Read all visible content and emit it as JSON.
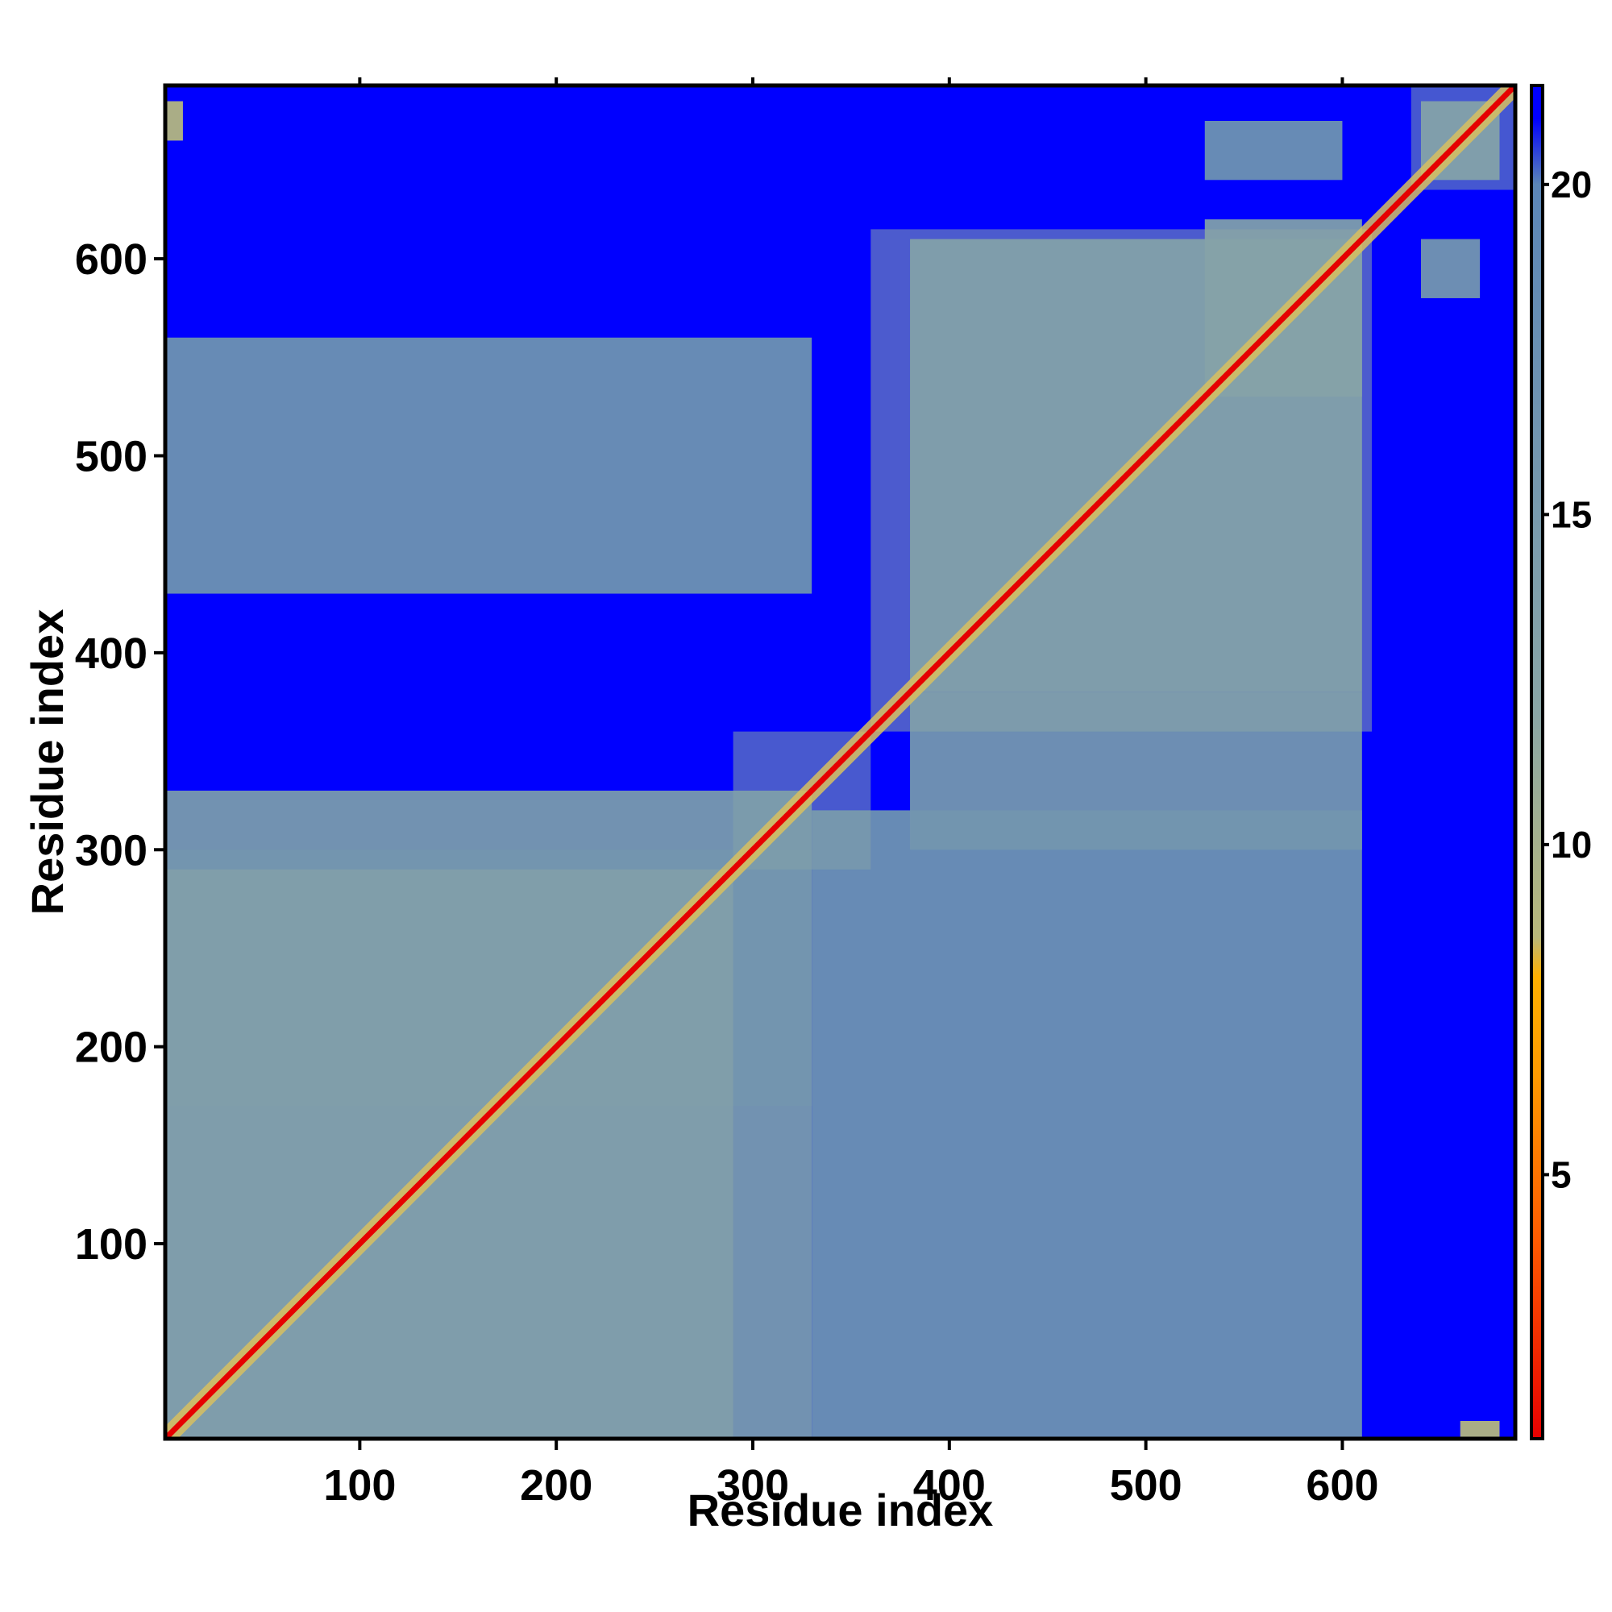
{
  "chart_data": {
    "type": "heatmap",
    "title": "",
    "xlabel": "Residue index",
    "ylabel": "Residue index",
    "n_residues": 688,
    "xlim": [
      1,
      688
    ],
    "ylim": [
      1,
      688
    ],
    "x_ticks": [
      100,
      200,
      300,
      400,
      500,
      600
    ],
    "y_ticks": [
      100,
      200,
      300,
      400,
      500,
      600
    ],
    "colorbar": {
      "ticks": [
        5,
        10,
        15,
        20
      ],
      "range": [
        1,
        21.5
      ],
      "colors": [
        {
          "value": 1,
          "color": "#e60000"
        },
        {
          "value": 4,
          "color": "#ff5a00"
        },
        {
          "value": 6.5,
          "color": "#ff9a00"
        },
        {
          "value": 8,
          "color": "#ffb000"
        },
        {
          "value": 8.6,
          "color": "#b8b87a"
        },
        {
          "value": 12,
          "color": "#8aa6a6"
        },
        {
          "value": 20,
          "color": "#5b86b8"
        },
        {
          "value": 21,
          "color": "#0000ff"
        }
      ]
    },
    "background_color": "#0000ff",
    "contact_color": "#5b86b8",
    "close_color": "#d8c060",
    "diagonal_color": "#e60000",
    "domains": [
      {
        "start": 1,
        "end": 290,
        "value": 12
      },
      {
        "start": 290,
        "end": 360,
        "value": 13
      },
      {
        "start": 360,
        "end": 615,
        "value": 12
      },
      {
        "start": 635,
        "end": 688,
        "value": 14
      }
    ],
    "off_diagonal_contacts": [
      {
        "x": [
          1,
          330
        ],
        "y": [
          1,
          330
        ],
        "value": 15
      },
      {
        "x": [
          380,
          610
        ],
        "y": [
          380,
          610
        ],
        "value": 15
      },
      {
        "x": [
          1,
          330
        ],
        "y": [
          430,
          560
        ],
        "value": 17
      },
      {
        "x": [
          1,
          330
        ],
        "y": [
          170,
          300
        ],
        "value": 16
      },
      {
        "x": [
          330,
          610
        ],
        "y": [
          1,
          320
        ],
        "value": 17
      },
      {
        "x": [
          380,
          610
        ],
        "y": [
          300,
          380
        ],
        "value": 16
      },
      {
        "x": [
          530,
          610
        ],
        "y": [
          530,
          620
        ],
        "value": 14
      },
      {
        "x": [
          640,
          680
        ],
        "y": [
          640,
          680
        ],
        "value": 12
      },
      {
        "x": [
          1,
          10
        ],
        "y": [
          660,
          680
        ],
        "value": 9
      },
      {
        "x": [
          660,
          680
        ],
        "y": [
          1,
          10
        ],
        "value": 9
      },
      {
        "x": [
          530,
          600
        ],
        "y": [
          640,
          670
        ],
        "value": 17
      },
      {
        "x": [
          640,
          670
        ],
        "y": [
          580,
          610
        ],
        "value": 16
      }
    ]
  }
}
